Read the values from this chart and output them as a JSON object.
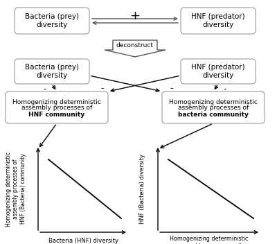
{
  "bg_color": "#ffffff",
  "text_color": "#000000",
  "box_ec": "#999999",
  "arrow_color": "#555555",
  "top_box1_text": "Bacteria (prey)\ndiversity",
  "top_box2_text": "HNF (predator)\ndiversity",
  "top_plus": "+",
  "deconstruct_text": "deconstruct",
  "mid_box1_text": "Bacteria (prey)\ndiversity",
  "mid_box2_text": "HNF (predator)\ndiversity",
  "bot_box1_line1": "Homogenizing deterministic",
  "bot_box1_line2": "assembly processes of",
  "bot_box1_line3": "HNF community",
  "bot_box2_line1": "Homogenizing deterministic",
  "bot_box2_line2": "assembly processes of",
  "bot_box2_line3": "bacteria community",
  "plot1_xlabel": "Bacteria (HNF) diversity",
  "plot1_ylabel": "Homogenizing deterministic\nassembly processes of\nHNF (Bacteria) community",
  "plot2_xlabel": "Homogenizing deterministic\nassembly processes of\nHNF (Bacteria) community",
  "plot2_ylabel": "HNF (Bacteria) diversity"
}
